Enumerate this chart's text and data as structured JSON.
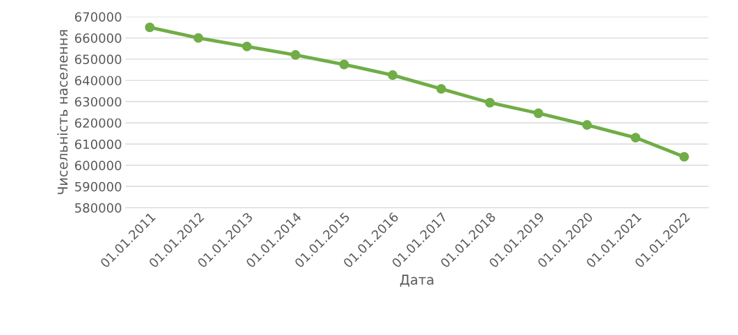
{
  "chart_data": {
    "type": "line",
    "xlabel": "Дата",
    "ylabel": "Чисельність населення",
    "categories": [
      "01.01.2011",
      "01.01.2012",
      "01.01.2013",
      "01.01.2014",
      "01.01.2015",
      "01.01.2016",
      "01.01.2017",
      "01.01.2018",
      "01.01.2019",
      "01.01.2020",
      "01.01.2021",
      "01.01.2022"
    ],
    "series": [
      {
        "color": "#70ad47",
        "values": [
          665000,
          660000,
          656000,
          652000,
          647500,
          642500,
          636000,
          629500,
          624500,
          619000,
          613000,
          604000
        ]
      }
    ],
    "ylim": [
      580000,
      670000
    ],
    "yticks": [
      580000,
      590000,
      600000,
      610000,
      620000,
      630000,
      640000,
      650000,
      660000,
      670000
    ],
    "grid": "y",
    "marker": "circle",
    "line_style": "solid",
    "legend": false
  }
}
